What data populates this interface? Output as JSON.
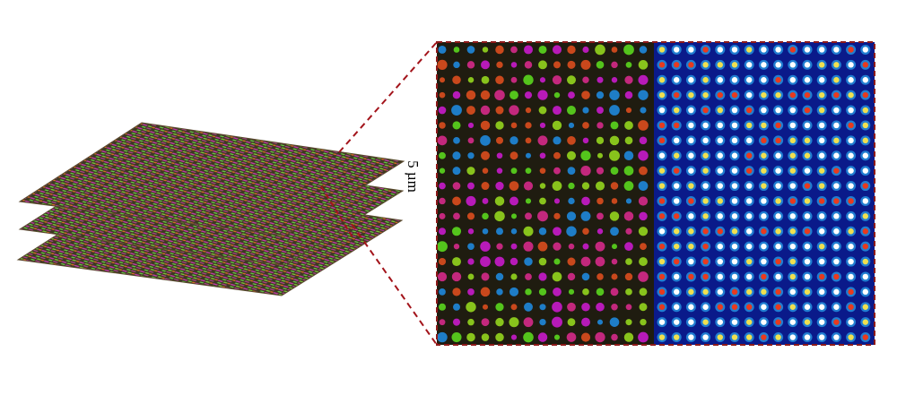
{
  "scale_label": "5 µm"
}
